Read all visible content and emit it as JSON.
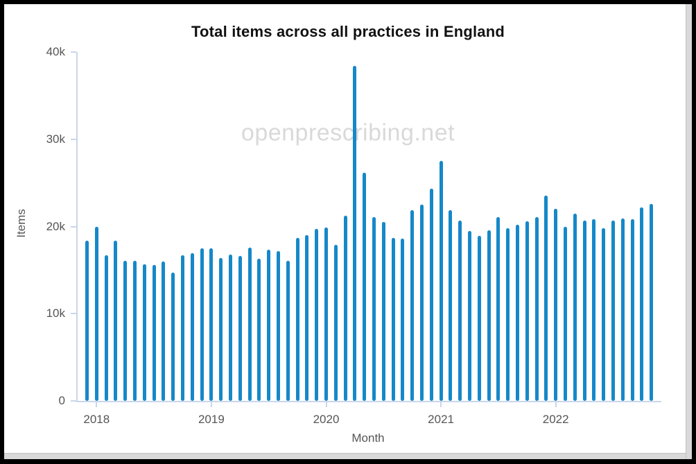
{
  "chart": {
    "title": "Total items across all practices in England",
    "watermark": "openprescribing.net",
    "xlabel": "Month",
    "ylabel": "Items"
  },
  "chart_data": {
    "type": "bar",
    "title": "Total items across all practices in England",
    "xlabel": "Month",
    "ylabel": "Items",
    "ylim": [
      0,
      40000
    ],
    "grid": false,
    "legend_position": "none",
    "watermark": "openprescribing.net",
    "bar_color": "#1588c9",
    "axis_color": "#c9d6ec",
    "ytick_values": [
      0,
      10000,
      20000,
      30000,
      40000
    ],
    "ytick_labels": [
      "0",
      "10k",
      "20k",
      "30k",
      "40k"
    ],
    "xtick_labels": [
      "2018",
      "2019",
      "2020",
      "2021",
      "2022"
    ],
    "categories": [
      "2017-12",
      "2018-01",
      "2018-02",
      "2018-03",
      "2018-04",
      "2018-05",
      "2018-06",
      "2018-07",
      "2018-08",
      "2018-09",
      "2018-10",
      "2018-11",
      "2018-12",
      "2019-01",
      "2019-02",
      "2019-03",
      "2019-04",
      "2019-05",
      "2019-06",
      "2019-07",
      "2019-08",
      "2019-09",
      "2019-10",
      "2019-11",
      "2019-12",
      "2020-01",
      "2020-02",
      "2020-03",
      "2020-04",
      "2020-05",
      "2020-06",
      "2020-07",
      "2020-08",
      "2020-09",
      "2020-10",
      "2020-11",
      "2020-12",
      "2021-01",
      "2021-02",
      "2021-03",
      "2021-04",
      "2021-05",
      "2021-06",
      "2021-07",
      "2021-08",
      "2021-09",
      "2021-10",
      "2021-11",
      "2021-12",
      "2022-01",
      "2022-02",
      "2022-03",
      "2022-04",
      "2022-05",
      "2022-06",
      "2022-07",
      "2022-08",
      "2022-09",
      "2022-10",
      "2022-11"
    ],
    "values": [
      18400,
      20000,
      16700,
      18400,
      16100,
      16100,
      15700,
      15600,
      16000,
      14700,
      16700,
      16900,
      17500,
      17500,
      16400,
      16800,
      16600,
      17600,
      16300,
      17300,
      17200,
      16100,
      18700,
      19000,
      19700,
      19900,
      17900,
      21200,
      38400,
      26200,
      21100,
      20500,
      18700,
      18600,
      21900,
      22500,
      24300,
      27500,
      21900,
      20700,
      19500,
      18900,
      19600,
      21100,
      19800,
      20200,
      20600,
      21100,
      23500,
      22000,
      20000,
      21500,
      20700,
      20800,
      19800,
      20700,
      20900,
      20800,
      22200,
      22600
    ]
  }
}
